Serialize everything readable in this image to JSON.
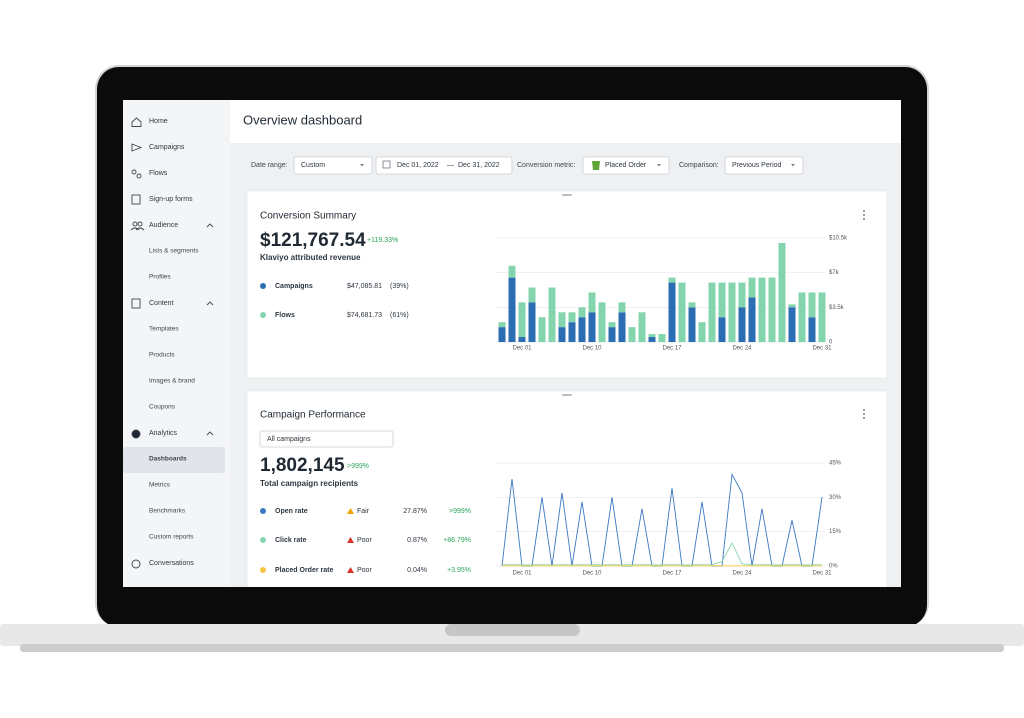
{
  "sidebar": {
    "items": [
      "Home",
      "Campaigns",
      "Flows",
      "Sign-up forms",
      "Audience",
      "Lists & segments",
      "Profiles",
      "Content",
      "Templates",
      "Products",
      "Images & brand",
      "Coupons",
      "Analytics",
      "Dashboards",
      "Metrics",
      "Benchmarks",
      "Custom reports",
      "Conversations"
    ]
  },
  "header": {
    "title": "Overview dashboard"
  },
  "filters": {
    "date_range_label": "Date range:",
    "date_range": "Custom",
    "start_date": "Dec 01, 2022",
    "date_separator": "—",
    "end_date": "Dec 31, 2022",
    "metric_label": "Conversion metric:",
    "metric": "Placed Order",
    "comparison_label": "Comparison:",
    "comparison": "Previous Period"
  },
  "conversion_summary": {
    "title": "Conversion Summary",
    "total": "$121,767.54",
    "change": "+119.33%",
    "subtitle": "Klaviyo attributed revenue",
    "breakdown": [
      {
        "value": "$47,085.81",
        "share": "(39%)"
      },
      {
        "value": "$74,681.73",
        "share": "(61%)"
      }
    ],
    "chart": {
      "type": "bar",
      "stacked": true,
      "categories": [
        null,
        null,
        "Dec 01",
        null,
        null,
        null,
        null,
        null,
        null,
        "Dec 10",
        null,
        null,
        null,
        null,
        null,
        null,
        null,
        "Dec 17",
        null,
        null,
        null,
        null,
        null,
        null,
        "Dec 24",
        null,
        null,
        null,
        null,
        null,
        null,
        null,
        "Dec 31"
      ],
      "series": [
        {
          "name": "Campaigns",
          "color": "#2b6cb3",
          "values": [
            1500,
            6500,
            500,
            4000,
            0,
            0,
            1500,
            2000,
            2500,
            3000,
            0,
            1500,
            3000,
            0,
            0,
            500,
            0,
            6000,
            0,
            3500,
            0,
            0,
            2500,
            0,
            3500,
            4500,
            0,
            0,
            0,
            3500,
            0,
            2500,
            0
          ]
        },
        {
          "name": "Flows",
          "color": "#84d4ad",
          "values": [
            500,
            1200,
            3500,
            1500,
            2500,
            5500,
            1500,
            1000,
            1000,
            2000,
            4000,
            500,
            1000,
            1500,
            3000,
            300,
            800,
            500,
            6000,
            500,
            2000,
            6000,
            3500,
            6000,
            2500,
            2000,
            6500,
            6500,
            10000,
            300,
            5000,
            2500,
            5000
          ]
        }
      ],
      "ylim": [
        0,
        10500
      ],
      "yticks": [
        0,
        {
          "value": 3500,
          "label": "$3.5k"
        },
        {
          "value": 7000,
          "label": "$7k"
        },
        {
          "value": 10500,
          "label": "$10.5k"
        }
      ],
      "grid": true
    }
  },
  "campaign_performance": {
    "title": "Campaign Performance",
    "filter": "All campaigns",
    "total": "1,802,145",
    "change": ">999%",
    "subtitle": "Total campaign recipients",
    "rows": [
      {
        "rating": "Fair",
        "value": "27.87%",
        "change": ">999%"
      },
      {
        "rating": "Poor",
        "value": "0.87%",
        "change": "+86.79%"
      },
      {
        "rating": "Poor",
        "value": "0.04%",
        "change": "+3.95%"
      }
    ],
    "chart": {
      "type": "line",
      "categories": [
        null,
        null,
        "Dec 01",
        null,
        null,
        null,
        null,
        null,
        null,
        "Dec 10",
        null,
        null,
        null,
        null,
        null,
        null,
        null,
        "Dec 17",
        null,
        null,
        null,
        null,
        null,
        null,
        "Dec 24",
        null,
        null,
        null,
        null,
        null,
        null,
        null,
        "Dec 31"
      ],
      "series": [
        {
          "name": "Open rate",
          "color": "#3a78c2",
          "values": [
            0,
            38,
            0,
            0,
            30,
            0,
            32,
            0,
            28,
            0,
            0,
            30,
            0,
            0,
            25,
            0,
            0,
            34,
            0,
            0,
            28,
            0,
            0,
            40,
            32,
            0,
            25,
            0,
            0,
            20,
            0,
            0,
            30
          ]
        },
        {
          "name": "Click rate",
          "color": "#86d7b0",
          "values": [
            0.5,
            0.5,
            0.5,
            0.5,
            0.5,
            0.5,
            0.5,
            0.5,
            0.5,
            0.5,
            0.5,
            0.5,
            0.5,
            0.5,
            0.5,
            0.5,
            0.5,
            0.5,
            0.5,
            0.5,
            0.5,
            0.5,
            2,
            10,
            1,
            0.5,
            0.5,
            0.5,
            0.5,
            0.5,
            0.5,
            0.5,
            0.5
          ]
        },
        {
          "name": "Placed Order rate",
          "color": "#f5c542",
          "values": [
            0.1,
            0.1,
            0.1,
            0.1,
            0.1,
            0.1,
            0.1,
            0.1,
            0.1,
            0.1,
            0.1,
            0.1,
            0.1,
            0.1,
            0.1,
            0.1,
            0.1,
            0.1,
            0.1,
            0.1,
            0.1,
            0.1,
            0.1,
            0.1,
            0.1,
            0.1,
            0.1,
            0.1,
            0.1,
            0.1,
            0.1,
            0.1,
            0.1
          ]
        }
      ],
      "ylim": [
        0,
        45
      ],
      "yticks": [
        {
          "value": 0,
          "label": "0%"
        },
        {
          "value": 15,
          "label": "15%"
        },
        {
          "value": 30,
          "label": "30%"
        },
        {
          "value": 45,
          "label": "45%"
        }
      ],
      "grid": true
    }
  }
}
